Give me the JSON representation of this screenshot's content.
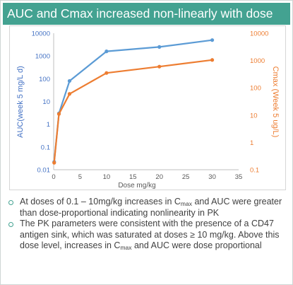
{
  "title": "AUC and Cmax increased non-linearly with dose",
  "colors": {
    "title_bg": "#43a291",
    "auc": "#5b9bd5",
    "cmax": "#ed7d31",
    "bullet": "#43a291"
  },
  "chart_data": {
    "type": "line",
    "xlabel": "Dose mg/kg",
    "ylabel": "AUC(week 5 mg/L d)",
    "y2label": "Cmax (Week 5 ug/L)",
    "xlim": [
      0,
      35
    ],
    "x_ticks": [
      "0",
      "5",
      "10",
      "15",
      "20",
      "25",
      "30",
      "35"
    ],
    "y_scale": "log",
    "ylim": [
      0.01,
      10000
    ],
    "y_ticks": [
      "0.01",
      "0.1",
      "1",
      "10",
      "100",
      "1000",
      "10000"
    ],
    "y2_scale": "log",
    "y2lim": [
      0.1,
      10000
    ],
    "y2_ticks": [
      "0.1",
      "1",
      "10",
      "100",
      "1000",
      "10000"
    ],
    "grid": false,
    "legend": "none",
    "series": [
      {
        "axis": "left",
        "color": "#5b9bd5",
        "x": [
          0.1,
          1,
          3,
          10,
          20,
          30
        ],
        "y": [
          0.022,
          3,
          80,
          1600,
          2500,
          5000
        ]
      },
      {
        "axis": "right",
        "color": "#ed7d31",
        "x": [
          0.1,
          1,
          3,
          10,
          20,
          30
        ],
        "y": [
          0.18,
          11,
          60,
          350,
          600,
          1050
        ]
      }
    ]
  },
  "bullets": [
    {
      "parts": [
        "At doses of 0.1 – 10mg/kg increases in C",
        "max",
        " and AUC were greater than dose-proportional indicating nonlinearity in PK"
      ]
    },
    {
      "parts": [
        "The PK parameters were consistent with the presence of a CD47 antigen sink, which was saturated at doses ≥ 10 mg/kg. Above this dose level, increases in C",
        "max",
        " and AUC were dose proportional"
      ]
    }
  ]
}
